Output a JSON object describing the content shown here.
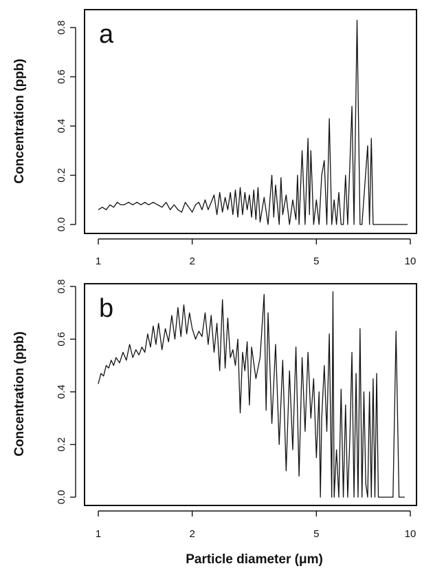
{
  "chart_data": [
    {
      "type": "line",
      "panel_label": "a",
      "ylabel": "Concentration (ppb)",
      "xscale": "log",
      "xlim": [
        1,
        10
      ],
      "ylim": [
        0,
        0.85
      ],
      "xticks": [
        1,
        2,
        5,
        10
      ],
      "xtick_labels": [
        "1",
        "2",
        "5",
        "10"
      ],
      "yticks": [
        0,
        0.2,
        0.4,
        0.6,
        0.8
      ],
      "ytick_labels": [
        "0.0",
        "0.2",
        "0.4",
        "0.6",
        "0.8"
      ],
      "grid": false,
      "series": [
        {
          "x": [
            1.0,
            1.03,
            1.06,
            1.09,
            1.12,
            1.15,
            1.18,
            1.21,
            1.25,
            1.29,
            1.33,
            1.37,
            1.41,
            1.45,
            1.5,
            1.55,
            1.6,
            1.65,
            1.7,
            1.75,
            1.8,
            1.85,
            1.9,
            1.95,
            2.0,
            2.05,
            2.1,
            2.15,
            2.2,
            2.25,
            2.3,
            2.35,
            2.4,
            2.45,
            2.5,
            2.55,
            2.6,
            2.65,
            2.7,
            2.75,
            2.8,
            2.85,
            2.9,
            2.95,
            3.0,
            3.05,
            3.1,
            3.15,
            3.2,
            3.25,
            3.3,
            3.4,
            3.5,
            3.6,
            3.65,
            3.7,
            3.8,
            3.85,
            3.9,
            4.0,
            4.1,
            4.2,
            4.3,
            4.35,
            4.4,
            4.5,
            4.6,
            4.7,
            4.75,
            4.8,
            4.9,
            5.0,
            5.1,
            5.2,
            5.3,
            5.4,
            5.5,
            5.6,
            5.7,
            5.8,
            5.9,
            6.0,
            6.1,
            6.2,
            6.3,
            6.5,
            6.6,
            6.75,
            6.9,
            7.0,
            7.3,
            7.4,
            7.5,
            7.6,
            7.7,
            9.8
          ],
          "y": [
            0.06,
            0.07,
            0.06,
            0.08,
            0.07,
            0.09,
            0.08,
            0.08,
            0.09,
            0.08,
            0.09,
            0.08,
            0.09,
            0.08,
            0.09,
            0.08,
            0.07,
            0.09,
            0.06,
            0.08,
            0.06,
            0.05,
            0.09,
            0.07,
            0.05,
            0.08,
            0.09,
            0.06,
            0.1,
            0.06,
            0.09,
            0.12,
            0.04,
            0.13,
            0.05,
            0.11,
            0.06,
            0.13,
            0.04,
            0.14,
            0.03,
            0.15,
            0.04,
            0.13,
            0.06,
            0.12,
            0.03,
            0.14,
            0.02,
            0.15,
            0.01,
            0.11,
            0.0,
            0.2,
            0.03,
            0.16,
            0.0,
            0.19,
            0.04,
            0.12,
            0.0,
            0.1,
            0.02,
            0.2,
            0.0,
            0.3,
            0.0,
            0.35,
            0.04,
            0.3,
            0.0,
            0.1,
            0.0,
            0.2,
            0.26,
            0.0,
            0.43,
            0.0,
            0.1,
            0.0,
            0.13,
            0.0,
            0.0,
            0.2,
            0.0,
            0.48,
            0.0,
            0.83,
            0.0,
            0.0,
            0.32,
            0.0,
            0.35,
            0.0,
            0.0,
            0.0
          ]
        }
      ]
    },
    {
      "type": "line",
      "panel_label": "b",
      "ylabel": "Concentration (ppb)",
      "xlabel": "Particle diameter (μm)",
      "xscale": "log",
      "xlim": [
        1,
        10
      ],
      "ylim": [
        0,
        0.8
      ],
      "xticks": [
        1,
        2,
        5,
        10
      ],
      "xtick_labels": [
        "1",
        "2",
        "5",
        "10"
      ],
      "yticks": [
        0,
        0.2,
        0.4,
        0.6,
        0.8
      ],
      "ytick_labels": [
        "0.0",
        "0.2",
        "0.4",
        "0.6",
        "0.8"
      ],
      "grid": false,
      "series": [
        {
          "x": [
            1.0,
            1.02,
            1.04,
            1.06,
            1.08,
            1.1,
            1.12,
            1.14,
            1.17,
            1.2,
            1.23,
            1.26,
            1.29,
            1.32,
            1.35,
            1.38,
            1.41,
            1.44,
            1.47,
            1.5,
            1.53,
            1.56,
            1.6,
            1.64,
            1.68,
            1.72,
            1.76,
            1.8,
            1.84,
            1.88,
            1.92,
            1.96,
            2.0,
            2.05,
            2.1,
            2.15,
            2.2,
            2.25,
            2.3,
            2.35,
            2.4,
            2.45,
            2.5,
            2.55,
            2.6,
            2.65,
            2.7,
            2.75,
            2.8,
            2.85,
            2.9,
            2.95,
            3.0,
            3.05,
            3.1,
            3.2,
            3.3,
            3.4,
            3.45,
            3.5,
            3.6,
            3.7,
            3.8,
            3.9,
            4.0,
            4.1,
            4.2,
            4.3,
            4.4,
            4.5,
            4.6,
            4.7,
            4.8,
            4.9,
            5.0,
            5.1,
            5.15,
            5.2,
            5.3,
            5.4,
            5.5,
            5.6,
            5.65,
            5.7,
            5.8,
            5.9,
            6.0,
            6.1,
            6.2,
            6.3,
            6.4,
            6.5,
            6.6,
            6.7,
            6.8,
            6.9,
            7.0,
            7.1,
            7.2,
            7.3,
            7.4,
            7.5,
            7.6,
            7.7,
            7.8,
            7.9,
            8.0,
            8.1,
            8.2,
            8.3,
            8.5,
            8.8,
            9.0,
            9.2,
            9.6
          ],
          "y": [
            0.43,
            0.47,
            0.46,
            0.5,
            0.49,
            0.52,
            0.5,
            0.53,
            0.51,
            0.55,
            0.52,
            0.58,
            0.53,
            0.56,
            0.54,
            0.57,
            0.55,
            0.62,
            0.57,
            0.65,
            0.58,
            0.66,
            0.56,
            0.64,
            0.59,
            0.69,
            0.6,
            0.72,
            0.61,
            0.73,
            0.62,
            0.7,
            0.64,
            0.6,
            0.63,
            0.61,
            0.7,
            0.58,
            0.69,
            0.55,
            0.66,
            0.48,
            0.75,
            0.49,
            0.68,
            0.53,
            0.56,
            0.5,
            0.6,
            0.32,
            0.55,
            0.48,
            0.59,
            0.35,
            0.57,
            0.45,
            0.53,
            0.77,
            0.33,
            0.7,
            0.28,
            0.58,
            0.2,
            0.52,
            0.1,
            0.48,
            0.18,
            0.57,
            0.08,
            0.53,
            0.25,
            0.55,
            0.3,
            0.45,
            0.15,
            0.4,
            0.0,
            0.3,
            0.5,
            0.25,
            0.62,
            0.0,
            0.78,
            0.0,
            0.18,
            0.0,
            0.41,
            0.0,
            0.35,
            0.0,
            0.22,
            0.55,
            0.0,
            0.47,
            0.0,
            0.64,
            0.0,
            0.4,
            0.05,
            0.0,
            0.4,
            0.0,
            0.45,
            0.0,
            0.47,
            0.0,
            0.0,
            0.0,
            0.0,
            0.0,
            0.0,
            0.0,
            0.63,
            0.0,
            0.0
          ]
        }
      ]
    }
  ]
}
